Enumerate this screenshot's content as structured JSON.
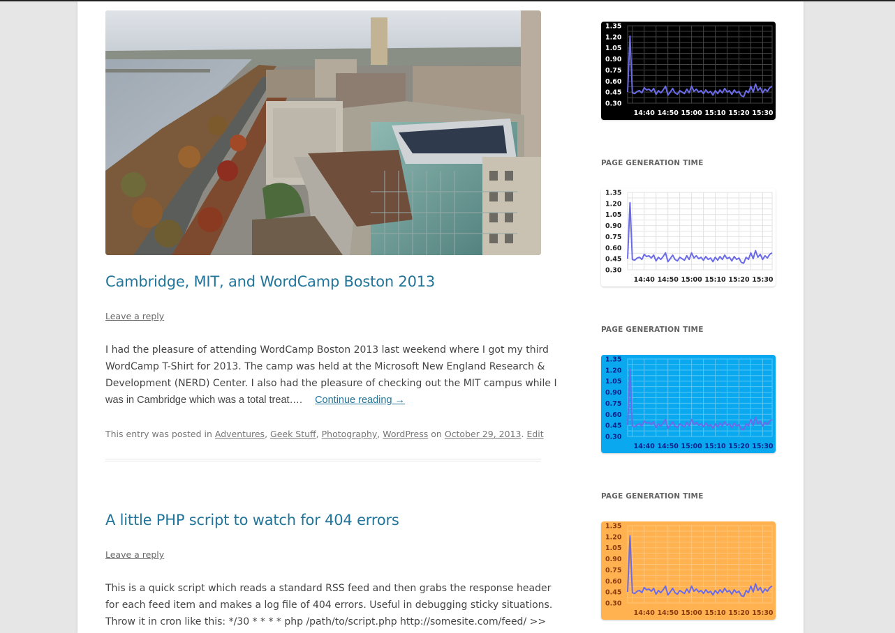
{
  "posts": [
    {
      "title": "Cambridge, MIT, and WordCamp Boston 2013",
      "reply_label": "Leave a reply",
      "body_lines": [
        "I had the pleasure of attending WordCamp Boston 2013 last weekend where I got my third",
        "WordCamp T-Shirt for 2013. The camp was held at the Microsoft New England Research &",
        "Development (NERD) Center. I also had the pleasure of checking out the MIT campus while I",
        "was in Cambridge which was a total treat…."
      ],
      "continue_label": "Continue reading →",
      "meta": {
        "prefix": "This entry was posted in",
        "categories": [
          "Adventures",
          "Geek Stuff",
          "Photography",
          "WordPress"
        ],
        "on": "on",
        "date": "October 29, 2013",
        "edit": "Edit"
      }
    },
    {
      "title": "A little PHP script to watch for 404 errors",
      "reply_label": "Leave a reply",
      "body_lines": [
        "This is a quick script which reads a standard RSS feed and then grabs the response header",
        "for each feed item and makes a log file of 404 errors. Useful in debugging sticky situations.",
        "Throw it in cron like this: */30 * * * * php /path/to/script.php http://somesite.com/feed/ >>"
      ]
    }
  ],
  "sidebar": {
    "widget_title": "PAGE GENERATION TIME"
  },
  "chart_data": [
    {
      "type": "line",
      "theme": "black",
      "colors": {
        "bg": "#000000",
        "grid": "#444444",
        "text": "#ffffff",
        "line": "#6b6bea"
      },
      "x_ticks": [
        "14:40",
        "14:50",
        "15:00",
        "15:10",
        "15:20",
        "15:30"
      ],
      "y_ticks": [
        "1.35",
        "1.20",
        "1.05",
        "0.90",
        "0.75",
        "0.60",
        "0.45",
        "0.30"
      ],
      "ylim": [
        0.3,
        1.35
      ],
      "xlim": [
        "14:33",
        "15:34"
      ],
      "series": [
        {
          "x": [
            "14:33",
            "14:34",
            "14:35",
            "14:36",
            "14:37",
            "14:38",
            "14:39",
            "14:40",
            "14:41",
            "14:42",
            "14:43",
            "14:44",
            "14:45",
            "14:46",
            "14:47",
            "14:48",
            "14:49",
            "14:50",
            "14:51",
            "14:52",
            "14:53",
            "14:54",
            "14:55",
            "14:56",
            "14:57",
            "14:58",
            "14:59",
            "15:00",
            "15:01",
            "15:02",
            "15:03",
            "15:04",
            "15:05",
            "15:06",
            "15:07",
            "15:08",
            "15:09",
            "15:10",
            "15:11",
            "15:12",
            "15:13",
            "15:14",
            "15:15",
            "15:16",
            "15:17",
            "15:18",
            "15:19",
            "15:20",
            "15:21",
            "15:22",
            "15:23",
            "15:24",
            "15:25",
            "15:26",
            "15:27",
            "15:28",
            "15:29",
            "15:30",
            "15:31",
            "15:32",
            "15:33",
            "15:34"
          ],
          "values": [
            0.45,
            1.21,
            0.44,
            0.43,
            0.46,
            0.47,
            0.44,
            0.51,
            0.48,
            0.49,
            0.46,
            0.5,
            0.42,
            0.47,
            0.44,
            0.48,
            0.53,
            0.41,
            0.45,
            0.5,
            0.44,
            0.42,
            0.47,
            0.45,
            0.43,
            0.49,
            0.44,
            0.53,
            0.46,
            0.49,
            0.45,
            0.47,
            0.43,
            0.48,
            0.44,
            0.46,
            0.41,
            0.47,
            0.43,
            0.48,
            0.44,
            0.5,
            0.45,
            0.47,
            0.42,
            0.48,
            0.44,
            0.46,
            0.4,
            0.39,
            0.47,
            0.44,
            0.53,
            0.45,
            0.56,
            0.47,
            0.51,
            0.44,
            0.49,
            0.46,
            0.51,
            0.53
          ]
        }
      ]
    },
    {
      "type": "line",
      "theme": "white",
      "colors": {
        "bg": "#ffffff",
        "grid": "#e2e2e2",
        "text": "#222222",
        "line": "#6b6bea"
      },
      "x_ticks": [
        "14:40",
        "14:50",
        "15:00",
        "15:10",
        "15:20",
        "15:30"
      ],
      "y_ticks": [
        "1.35",
        "1.20",
        "1.05",
        "0.90",
        "0.75",
        "0.60",
        "0.45",
        "0.30"
      ],
      "ylim": [
        0.3,
        1.35
      ],
      "xlim": [
        "14:33",
        "15:34"
      ],
      "series": [
        {
          "x": [
            "14:33",
            "14:34",
            "14:35",
            "14:36",
            "14:37",
            "14:38",
            "14:39",
            "14:40",
            "14:41",
            "14:42",
            "14:43",
            "14:44",
            "14:45",
            "14:46",
            "14:47",
            "14:48",
            "14:49",
            "14:50",
            "14:51",
            "14:52",
            "14:53",
            "14:54",
            "14:55",
            "14:56",
            "14:57",
            "14:58",
            "14:59",
            "15:00",
            "15:01",
            "15:02",
            "15:03",
            "15:04",
            "15:05",
            "15:06",
            "15:07",
            "15:08",
            "15:09",
            "15:10",
            "15:11",
            "15:12",
            "15:13",
            "15:14",
            "15:15",
            "15:16",
            "15:17",
            "15:18",
            "15:19",
            "15:20",
            "15:21",
            "15:22",
            "15:23",
            "15:24",
            "15:25",
            "15:26",
            "15:27",
            "15:28",
            "15:29",
            "15:30",
            "15:31",
            "15:32",
            "15:33",
            "15:34"
          ],
          "values": [
            0.45,
            1.21,
            0.44,
            0.43,
            0.46,
            0.47,
            0.44,
            0.51,
            0.48,
            0.49,
            0.46,
            0.5,
            0.42,
            0.47,
            0.44,
            0.48,
            0.53,
            0.41,
            0.45,
            0.5,
            0.44,
            0.42,
            0.47,
            0.45,
            0.43,
            0.49,
            0.44,
            0.53,
            0.46,
            0.49,
            0.45,
            0.47,
            0.43,
            0.48,
            0.44,
            0.46,
            0.41,
            0.47,
            0.43,
            0.48,
            0.44,
            0.5,
            0.45,
            0.47,
            0.42,
            0.48,
            0.44,
            0.46,
            0.4,
            0.39,
            0.47,
            0.44,
            0.53,
            0.45,
            0.56,
            0.47,
            0.51,
            0.44,
            0.49,
            0.46,
            0.51,
            0.53
          ]
        }
      ]
    },
    {
      "type": "line",
      "theme": "blue",
      "colors": {
        "bg": "#0aa8ee",
        "grid": "#58c6f4",
        "text": "#0b1f8a",
        "line": "#6b6bea"
      },
      "x_ticks": [
        "14:40",
        "14:50",
        "15:00",
        "15:10",
        "15:20",
        "15:30"
      ],
      "y_ticks": [
        "1.35",
        "1.20",
        "1.05",
        "0.90",
        "0.75",
        "0.60",
        "0.45",
        "0.30"
      ],
      "ylim": [
        0.3,
        1.35
      ],
      "xlim": [
        "14:33",
        "15:34"
      ],
      "series": [
        {
          "x": [
            "14:33",
            "14:34",
            "14:35",
            "14:36",
            "14:37",
            "14:38",
            "14:39",
            "14:40",
            "14:41",
            "14:42",
            "14:43",
            "14:44",
            "14:45",
            "14:46",
            "14:47",
            "14:48",
            "14:49",
            "14:50",
            "14:51",
            "14:52",
            "14:53",
            "14:54",
            "14:55",
            "14:56",
            "14:57",
            "14:58",
            "14:59",
            "15:00",
            "15:01",
            "15:02",
            "15:03",
            "15:04",
            "15:05",
            "15:06",
            "15:07",
            "15:08",
            "15:09",
            "15:10",
            "15:11",
            "15:12",
            "15:13",
            "15:14",
            "15:15",
            "15:16",
            "15:17",
            "15:18",
            "15:19",
            "15:20",
            "15:21",
            "15:22",
            "15:23",
            "15:24",
            "15:25",
            "15:26",
            "15:27",
            "15:28",
            "15:29",
            "15:30",
            "15:31",
            "15:32",
            "15:33",
            "15:34"
          ],
          "values": [
            0.45,
            1.21,
            0.44,
            0.43,
            0.46,
            0.47,
            0.44,
            0.51,
            0.48,
            0.49,
            0.46,
            0.5,
            0.42,
            0.47,
            0.44,
            0.48,
            0.53,
            0.41,
            0.45,
            0.5,
            0.44,
            0.42,
            0.47,
            0.45,
            0.43,
            0.49,
            0.44,
            0.53,
            0.46,
            0.49,
            0.45,
            0.47,
            0.43,
            0.48,
            0.44,
            0.46,
            0.41,
            0.47,
            0.43,
            0.48,
            0.44,
            0.5,
            0.45,
            0.47,
            0.42,
            0.48,
            0.44,
            0.46,
            0.4,
            0.39,
            0.47,
            0.44,
            0.53,
            0.45,
            0.56,
            0.47,
            0.51,
            0.44,
            0.49,
            0.46,
            0.51,
            0.53
          ]
        }
      ]
    },
    {
      "type": "line",
      "theme": "orange",
      "colors": {
        "bg": "#ffb24f",
        "grid": "#ffc57a",
        "text": "#8a3a10",
        "line": "#6b6bea"
      },
      "x_ticks": [
        "14:40",
        "14:50",
        "15:00",
        "15:10",
        "15:20",
        "15:30"
      ],
      "y_ticks": [
        "1.35",
        "1.20",
        "1.05",
        "0.90",
        "0.75",
        "0.60",
        "0.45",
        "0.30"
      ],
      "ylim": [
        0.3,
        1.35
      ],
      "xlim": [
        "14:33",
        "15:34"
      ],
      "series": [
        {
          "x": [
            "14:33",
            "14:34",
            "14:35",
            "14:36",
            "14:37",
            "14:38",
            "14:39",
            "14:40",
            "14:41",
            "14:42",
            "14:43",
            "14:44",
            "14:45",
            "14:46",
            "14:47",
            "14:48",
            "14:49",
            "14:50",
            "14:51",
            "14:52",
            "14:53",
            "14:54",
            "14:55",
            "14:56",
            "14:57",
            "14:58",
            "14:59",
            "15:00",
            "15:01",
            "15:02",
            "15:03",
            "15:04",
            "15:05",
            "15:06",
            "15:07",
            "15:08",
            "15:09",
            "15:10",
            "15:11",
            "15:12",
            "15:13",
            "15:14",
            "15:15",
            "15:16",
            "15:17",
            "15:18",
            "15:19",
            "15:20",
            "15:21",
            "15:22",
            "15:23",
            "15:24",
            "15:25",
            "15:26",
            "15:27",
            "15:28",
            "15:29",
            "15:30",
            "15:31",
            "15:32",
            "15:33",
            "15:34"
          ],
          "values": [
            0.45,
            1.21,
            0.44,
            0.43,
            0.46,
            0.47,
            0.44,
            0.51,
            0.48,
            0.49,
            0.46,
            0.5,
            0.42,
            0.47,
            0.44,
            0.48,
            0.53,
            0.41,
            0.45,
            0.5,
            0.44,
            0.42,
            0.47,
            0.45,
            0.43,
            0.49,
            0.44,
            0.53,
            0.46,
            0.49,
            0.45,
            0.47,
            0.43,
            0.48,
            0.44,
            0.46,
            0.41,
            0.47,
            0.43,
            0.48,
            0.44,
            0.5,
            0.45,
            0.47,
            0.42,
            0.48,
            0.44,
            0.46,
            0.4,
            0.39,
            0.47,
            0.44,
            0.53,
            0.45,
            0.56,
            0.47,
            0.51,
            0.44,
            0.49,
            0.46,
            0.51,
            0.53
          ]
        }
      ]
    }
  ]
}
